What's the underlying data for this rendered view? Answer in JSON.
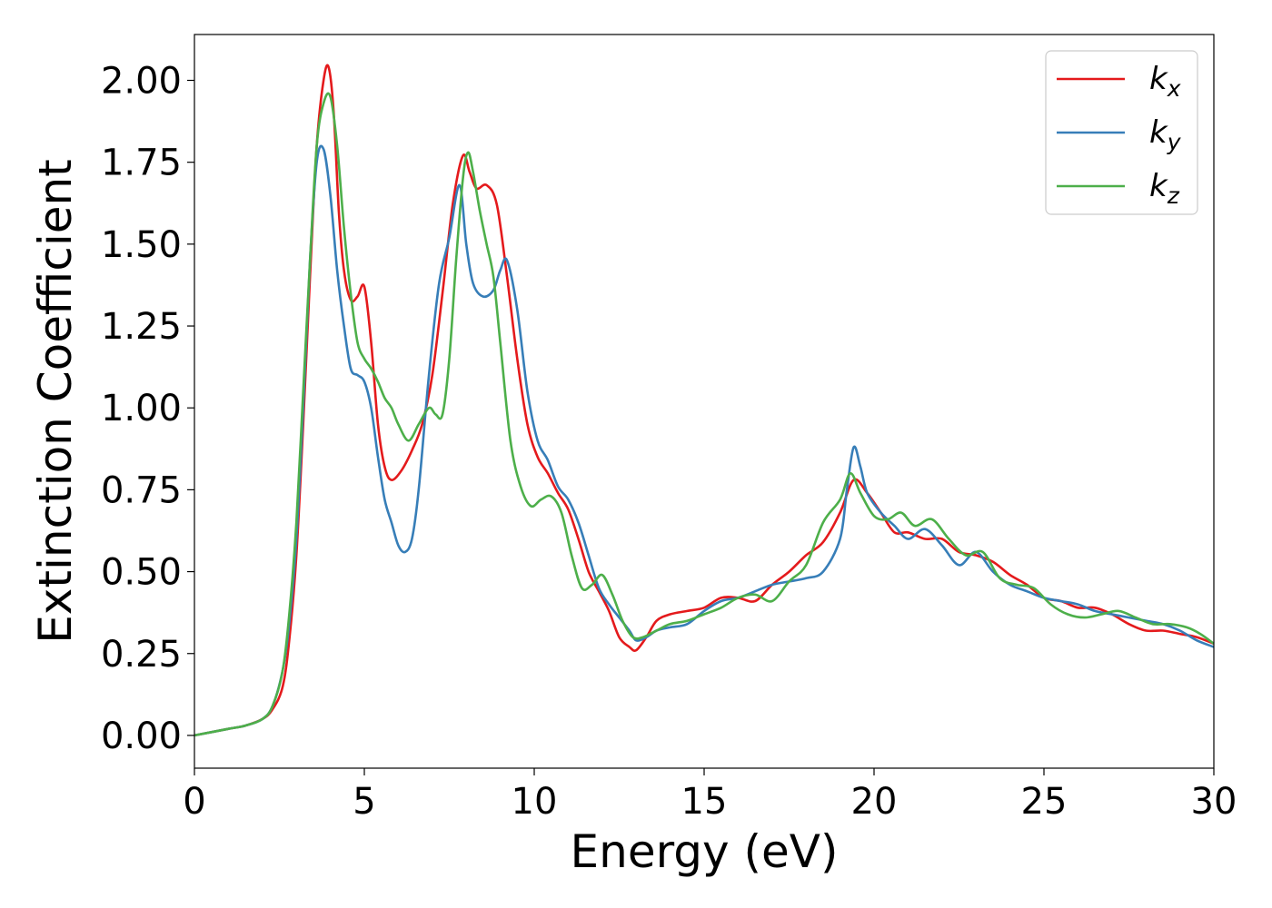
{
  "chart_data": {
    "type": "line",
    "title": "",
    "xlabel": "Energy (eV)",
    "ylabel": "Extinction Coefficient",
    "xlim": [
      0,
      30
    ],
    "ylim": [
      -0.1,
      2.14
    ],
    "xticks": [
      0,
      5,
      10,
      15,
      20,
      25,
      30
    ],
    "xtick_labels": [
      "0",
      "5",
      "10",
      "15",
      "20",
      "25",
      "30"
    ],
    "yticks": [
      0,
      0.25,
      0.5,
      0.75,
      1.0,
      1.25,
      1.5,
      1.75,
      2.0
    ],
    "ytick_labels": [
      "0.00",
      "0.25",
      "0.50",
      "0.75",
      "1.00",
      "1.25",
      "1.50",
      "1.75",
      "2.00"
    ],
    "grid": false,
    "legend_position": "top-right",
    "series": [
      {
        "name": "k_x",
        "legend_base": "k",
        "legend_sub": "x",
        "color": "#e41a1c",
        "x": [
          0,
          1,
          1.5,
          2,
          2.3,
          2.6,
          2.8,
          3.0,
          3.2,
          3.4,
          3.6,
          3.8,
          3.95,
          4.1,
          4.25,
          4.4,
          4.6,
          4.8,
          5.0,
          5.2,
          5.4,
          5.6,
          5.8,
          6.1,
          6.4,
          6.7,
          7.0,
          7.3,
          7.6,
          7.9,
          8.1,
          8.3,
          8.6,
          8.9,
          9.2,
          9.5,
          9.8,
          10.1,
          10.4,
          10.7,
          11.0,
          11.3,
          11.6,
          11.9,
          12.2,
          12.5,
          12.8,
          13.0,
          13.3,
          13.6,
          14,
          14.5,
          15,
          15.5,
          16,
          16.5,
          17,
          17.5,
          18,
          18.5,
          19,
          19.4,
          19.8,
          20.2,
          20.6,
          21,
          21.5,
          22,
          22.5,
          23,
          23.5,
          24,
          24.5,
          25,
          25.5,
          26,
          26.5,
          27,
          27.5,
          28,
          28.5,
          29,
          29.5,
          30
        ],
        "y": [
          0.0,
          0.02,
          0.03,
          0.05,
          0.08,
          0.15,
          0.3,
          0.55,
          0.95,
          1.4,
          1.8,
          2.0,
          2.04,
          1.9,
          1.6,
          1.42,
          1.33,
          1.34,
          1.37,
          1.2,
          0.95,
          0.82,
          0.78,
          0.81,
          0.87,
          0.95,
          1.1,
          1.35,
          1.62,
          1.77,
          1.72,
          1.67,
          1.68,
          1.62,
          1.4,
          1.15,
          0.95,
          0.85,
          0.8,
          0.74,
          0.69,
          0.6,
          0.5,
          0.44,
          0.38,
          0.3,
          0.27,
          0.26,
          0.3,
          0.35,
          0.37,
          0.38,
          0.39,
          0.42,
          0.42,
          0.41,
          0.46,
          0.5,
          0.55,
          0.59,
          0.68,
          0.78,
          0.74,
          0.68,
          0.62,
          0.62,
          0.6,
          0.6,
          0.56,
          0.55,
          0.53,
          0.49,
          0.46,
          0.42,
          0.41,
          0.39,
          0.39,
          0.37,
          0.34,
          0.32,
          0.32,
          0.31,
          0.3,
          0.28
        ]
      },
      {
        "name": "k_y",
        "legend_base": "k",
        "legend_sub": "y",
        "color": "#377eb8",
        "x": [
          0,
          1,
          1.5,
          2,
          2.3,
          2.6,
          2.8,
          3.0,
          3.2,
          3.4,
          3.6,
          3.8,
          4.0,
          4.2,
          4.4,
          4.6,
          4.8,
          5.0,
          5.2,
          5.4,
          5.6,
          5.8,
          6.0,
          6.2,
          6.4,
          6.6,
          6.9,
          7.2,
          7.5,
          7.8,
          8.0,
          8.2,
          8.5,
          8.8,
          9.0,
          9.2,
          9.5,
          9.8,
          10.1,
          10.4,
          10.7,
          11.0,
          11.3,
          11.6,
          11.9,
          12.2,
          12.5,
          12.8,
          13.0,
          13.3,
          13.6,
          14,
          14.5,
          15,
          15.5,
          16,
          16.5,
          17,
          17.5,
          18,
          18.5,
          19,
          19.2,
          19.4,
          19.6,
          19.8,
          20.2,
          20.6,
          21,
          21.5,
          22,
          22.5,
          23,
          23.5,
          24,
          24.5,
          25,
          25.5,
          26,
          26.5,
          27,
          27.5,
          28,
          28.5,
          29,
          29.5,
          30
        ],
        "y": [
          0.0,
          0.02,
          0.03,
          0.05,
          0.09,
          0.2,
          0.35,
          0.6,
          1.0,
          1.45,
          1.75,
          1.79,
          1.65,
          1.42,
          1.25,
          1.12,
          1.1,
          1.08,
          1.0,
          0.85,
          0.72,
          0.65,
          0.58,
          0.56,
          0.6,
          0.75,
          1.1,
          1.38,
          1.52,
          1.68,
          1.5,
          1.38,
          1.34,
          1.36,
          1.42,
          1.45,
          1.3,
          1.05,
          0.9,
          0.84,
          0.76,
          0.72,
          0.65,
          0.55,
          0.45,
          0.4,
          0.36,
          0.32,
          0.29,
          0.3,
          0.32,
          0.33,
          0.34,
          0.38,
          0.41,
          0.42,
          0.44,
          0.46,
          0.47,
          0.48,
          0.5,
          0.6,
          0.75,
          0.88,
          0.82,
          0.74,
          0.68,
          0.64,
          0.6,
          0.63,
          0.58,
          0.52,
          0.56,
          0.5,
          0.46,
          0.44,
          0.42,
          0.41,
          0.4,
          0.38,
          0.37,
          0.36,
          0.35,
          0.34,
          0.32,
          0.29,
          0.27
        ]
      },
      {
        "name": "k_z",
        "legend_base": "k",
        "legend_sub": "z",
        "color": "#4daf4a",
        "x": [
          0,
          1,
          1.5,
          2,
          2.3,
          2.6,
          2.8,
          3.0,
          3.2,
          3.4,
          3.6,
          3.8,
          4.0,
          4.2,
          4.4,
          4.6,
          4.8,
          5.0,
          5.2,
          5.4,
          5.6,
          5.8,
          6.0,
          6.3,
          6.6,
          6.9,
          7.1,
          7.3,
          7.5,
          7.7,
          7.9,
          8.05,
          8.2,
          8.4,
          8.6,
          8.8,
          9.0,
          9.3,
          9.6,
          9.9,
          10.2,
          10.5,
          10.8,
          11.1,
          11.4,
          11.7,
          12.0,
          12.3,
          12.6,
          12.9,
          13.2,
          13.6,
          14,
          14.5,
          15,
          15.5,
          16,
          16.5,
          17,
          17.5,
          18,
          18.5,
          19,
          19.3,
          19.6,
          20,
          20.4,
          20.8,
          21.2,
          21.7,
          22.2,
          22.7,
          23.2,
          23.7,
          24.2,
          24.7,
          25.2,
          25.7,
          26.2,
          26.7,
          27.2,
          27.7,
          28.2,
          28.7,
          29.2,
          29.6,
          30
        ],
        "y": [
          0.0,
          0.02,
          0.03,
          0.05,
          0.09,
          0.2,
          0.38,
          0.65,
          1.05,
          1.45,
          1.8,
          1.93,
          1.95,
          1.8,
          1.55,
          1.35,
          1.2,
          1.15,
          1.12,
          1.08,
          1.03,
          1.0,
          0.95,
          0.9,
          0.95,
          1.0,
          0.98,
          0.98,
          1.15,
          1.45,
          1.7,
          1.78,
          1.72,
          1.6,
          1.5,
          1.4,
          1.2,
          0.9,
          0.76,
          0.7,
          0.72,
          0.73,
          0.68,
          0.55,
          0.45,
          0.46,
          0.49,
          0.43,
          0.35,
          0.3,
          0.3,
          0.32,
          0.34,
          0.35,
          0.37,
          0.39,
          0.42,
          0.43,
          0.41,
          0.47,
          0.52,
          0.65,
          0.72,
          0.8,
          0.74,
          0.67,
          0.66,
          0.68,
          0.64,
          0.66,
          0.6,
          0.55,
          0.56,
          0.48,
          0.46,
          0.45,
          0.4,
          0.37,
          0.36,
          0.37,
          0.38,
          0.36,
          0.34,
          0.34,
          0.33,
          0.31,
          0.28
        ]
      }
    ]
  }
}
